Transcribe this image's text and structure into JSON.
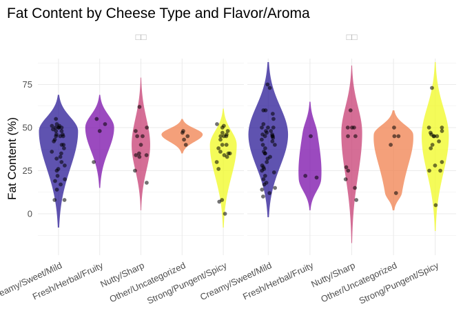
{
  "chart_data": {
    "type": "violin",
    "title": "Fat Content by Cheese Type and Flavor/Aroma",
    "ylabel": "Fat Content (%)",
    "xlabel": "",
    "ylim": [
      -24,
      90
    ],
    "yticks": [
      0,
      25,
      50,
      75
    ],
    "gridlines": true,
    "legend": "none",
    "categories": [
      "Creamy/Sweet/Mild",
      "Fresh/Herbal/Fruity",
      "Nutty/Sharp",
      "Other/Uncategorized",
      "Strong/Pungent/Spicy"
    ],
    "colors": [
      "#2a1996",
      "#7a0eaa",
      "#c73d73",
      "#f0804e",
      "#f0f921"
    ],
    "panels": [
      {
        "strip_label": "□□",
        "violins": [
          {
            "category": "Creamy/Sweet/Mild",
            "min": -8,
            "max": 69,
            "peaks": [
              [
                48,
                1.0
              ]
            ],
            "width": 0.95,
            "points": [
              8,
              8,
              14,
              17,
              19,
              20,
              22,
              25,
              26,
              28,
              30,
              32,
              33,
              35,
              36,
              38,
              40,
              40,
              42,
              43,
              45,
              45,
              45,
              46,
              46,
              48,
              48,
              49,
              50,
              50,
              50,
              50,
              51,
              51,
              52,
              55
            ]
          },
          {
            "category": "Fresh/Herbal/Fruity",
            "min": 15,
            "max": 69,
            "peaks": [
              [
                50,
                1.0
              ]
            ],
            "width": 0.7,
            "points": [
              30,
              48,
              52,
              55
            ]
          },
          {
            "category": "Nutty/Sharp",
            "min": 2,
            "max": 79,
            "peaks": [
              [
                40,
                1.0
              ]
            ],
            "width": 0.45,
            "points": [
              18,
              25,
              33,
              34,
              34,
              35,
              40,
              45,
              45,
              48,
              50,
              62
            ]
          },
          {
            "category": "Other/Uncategorized",
            "min": 35,
            "max": 55,
            "peaks": [
              [
                46,
                1.0
              ]
            ],
            "width": 1.0,
            "points": [
              40,
              43,
              45,
              47,
              48
            ]
          },
          {
            "category": "Strong/Pungent/Spicy",
            "min": -8,
            "max": 61,
            "peaks": [
              [
                40,
                1.0
              ]
            ],
            "width": 0.65,
            "points": [
              0,
              7,
              8,
              26,
              30,
              33,
              34,
              35,
              35,
              36,
              38,
              40,
              40,
              43,
              45,
              45,
              45,
              46,
              47,
              48,
              50,
              51,
              52
            ]
          }
        ]
      },
      {
        "strip_label": "□□",
        "violins": [
          {
            "category": "Creamy/Sweet/Mild",
            "min": -2,
            "max": 88,
            "peaks": [
              [
                46,
                1.0
              ]
            ],
            "width": 0.95,
            "points": [
              10,
              12,
              14,
              15,
              17,
              18,
              20,
              22,
              24,
              25,
              26,
              27,
              28,
              30,
              32,
              33,
              35,
              35,
              36,
              38,
              40,
              40,
              42,
              43,
              44,
              45,
              45,
              45,
              46,
              46,
              47,
              48,
              48,
              50,
              50,
              50,
              52,
              55,
              58,
              60,
              60,
              73,
              75
            ]
          },
          {
            "category": "Fresh/Herbal/Fruity",
            "min": 2,
            "max": 65,
            "peaks": [
              [
                20,
                1.0
              ],
              [
                47,
                0.45
              ]
            ],
            "width": 0.55,
            "points": [
              21,
              22,
              45
            ]
          },
          {
            "category": "Nutty/Sharp",
            "min": -17,
            "max": 86,
            "peaks": [
              [
                47,
                1.0
              ]
            ],
            "width": 0.5,
            "points": [
              8,
              15,
              20,
              25,
              27,
              45,
              45,
              50,
              50,
              50,
              60
            ]
          },
          {
            "category": "Other/Uncategorized",
            "min": 2,
            "max": 60,
            "peaks": [
              [
                46,
                1.0
              ],
              [
                12,
                0.32
              ]
            ],
            "width": 0.95,
            "points": [
              12,
              40,
              45,
              45,
              50
            ]
          },
          {
            "category": "Strong/Pungent/Spicy",
            "min": -10,
            "max": 88,
            "peaks": [
              [
                45,
                1.0
              ]
            ],
            "width": 0.65,
            "points": [
              5,
              25,
              25,
              28,
              30,
              38,
              40,
              42,
              45,
              45,
              45,
              46,
              47,
              48,
              50,
              50,
              73
            ]
          }
        ]
      }
    ]
  }
}
